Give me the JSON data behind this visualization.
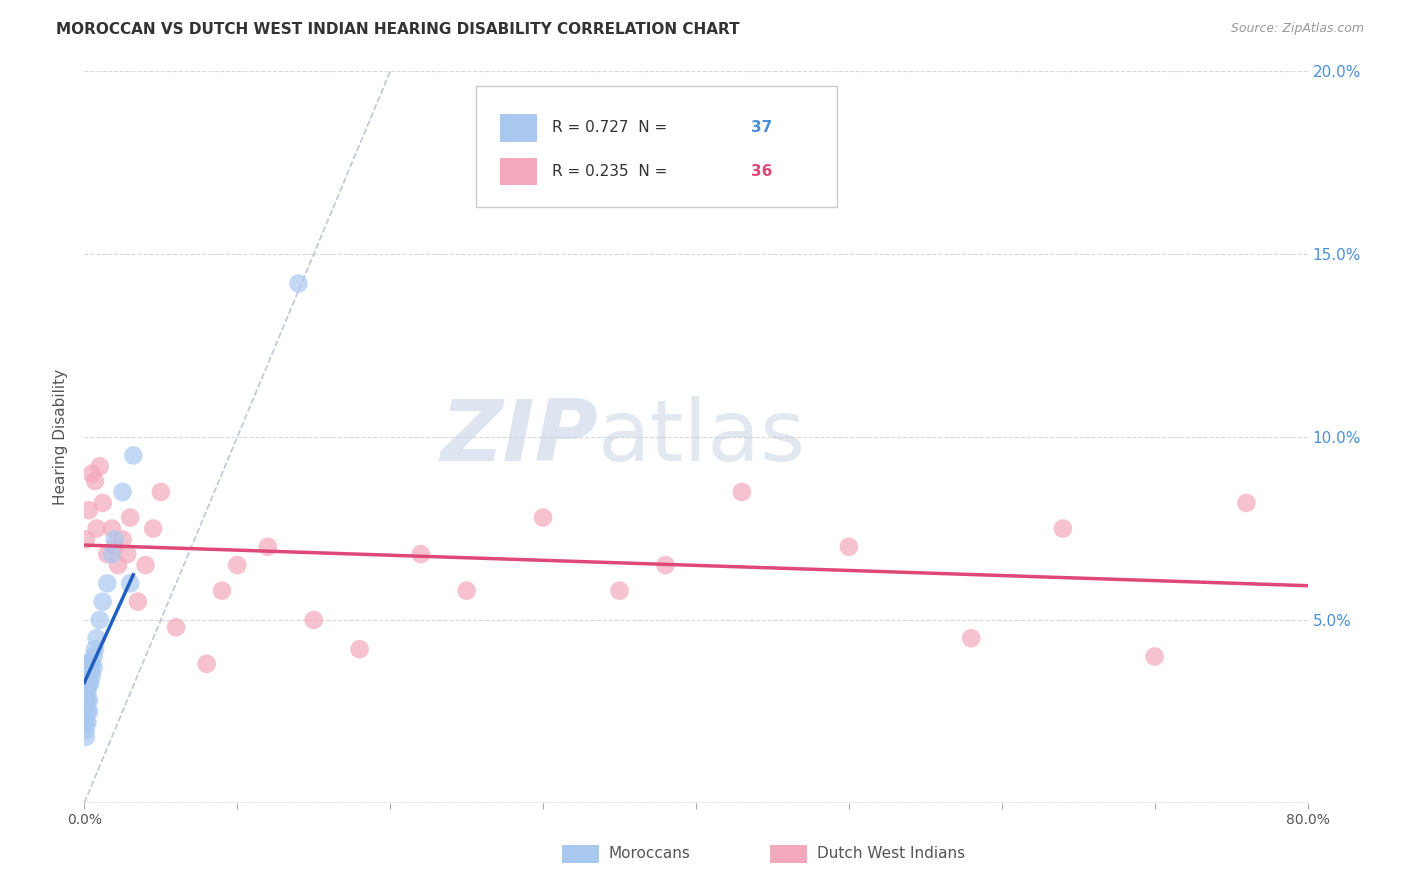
{
  "title": "MOROCCAN VS DUTCH WEST INDIAN HEARING DISABILITY CORRELATION CHART",
  "source": "Source: ZipAtlas.com",
  "ylabel": "Hearing Disability",
  "xlim": [
    0.0,
    0.8
  ],
  "ylim": [
    0.0,
    0.2
  ],
  "xticks": [
    0.0,
    0.1,
    0.2,
    0.3,
    0.4,
    0.5,
    0.6,
    0.7,
    0.8
  ],
  "yticks": [
    0.0,
    0.05,
    0.1,
    0.15,
    0.2
  ],
  "ytick_labels_right": [
    "",
    "5.0%",
    "10.0%",
    "15.0%",
    "20.0%"
  ],
  "R_moroccan": "0.727",
  "N_moroccan": "37",
  "R_dutch": "0.235",
  "N_dutch": "36",
  "moroccans_color": "#a8c8f0",
  "dutch_color": "#f4a8bc",
  "moroccans_line_color": "#2060c0",
  "dutch_line_color": "#e04878",
  "diag_color": "#b0b8cc",
  "watermark_zip": "ZIP",
  "watermark_atlas": "atlas",
  "background_color": "#ffffff",
  "grid_color": "#d8d8d8",
  "blue_series_label": "Moroccans",
  "pink_series_label": "Dutch West Indians",
  "N_color_blue": "#4a90d9",
  "N_color_pink": "#e04878",
  "legend_edge_color": "#cccccc",
  "moroccan_x": [
    0.001,
    0.001,
    0.001,
    0.001,
    0.001,
    0.001,
    0.001,
    0.002,
    0.002,
    0.002,
    0.002,
    0.002,
    0.002,
    0.002,
    0.003,
    0.003,
    0.003,
    0.003,
    0.003,
    0.004,
    0.004,
    0.004,
    0.005,
    0.005,
    0.006,
    0.006,
    0.007,
    0.008,
    0.01,
    0.012,
    0.015,
    0.018,
    0.02,
    0.025,
    0.03,
    0.032,
    0.14
  ],
  "moroccan_y": [
    0.02,
    0.022,
    0.025,
    0.028,
    0.03,
    0.032,
    0.018,
    0.028,
    0.03,
    0.032,
    0.035,
    0.038,
    0.025,
    0.022,
    0.032,
    0.035,
    0.038,
    0.025,
    0.028,
    0.033,
    0.036,
    0.038,
    0.035,
    0.038,
    0.037,
    0.04,
    0.042,
    0.045,
    0.05,
    0.055,
    0.06,
    0.068,
    0.072,
    0.085,
    0.06,
    0.095,
    0.142
  ],
  "dutch_x": [
    0.001,
    0.003,
    0.005,
    0.007,
    0.008,
    0.01,
    0.012,
    0.015,
    0.018,
    0.02,
    0.022,
    0.025,
    0.028,
    0.03,
    0.035,
    0.04,
    0.045,
    0.05,
    0.06,
    0.08,
    0.09,
    0.1,
    0.12,
    0.15,
    0.18,
    0.22,
    0.25,
    0.3,
    0.35,
    0.38,
    0.43,
    0.5,
    0.58,
    0.64,
    0.7,
    0.76
  ],
  "dutch_y": [
    0.072,
    0.08,
    0.09,
    0.088,
    0.075,
    0.092,
    0.082,
    0.068,
    0.075,
    0.07,
    0.065,
    0.072,
    0.068,
    0.078,
    0.055,
    0.065,
    0.075,
    0.085,
    0.048,
    0.038,
    0.058,
    0.065,
    0.07,
    0.05,
    0.042,
    0.068,
    0.058,
    0.078,
    0.058,
    0.065,
    0.085,
    0.07,
    0.045,
    0.075,
    0.04,
    0.082
  ]
}
